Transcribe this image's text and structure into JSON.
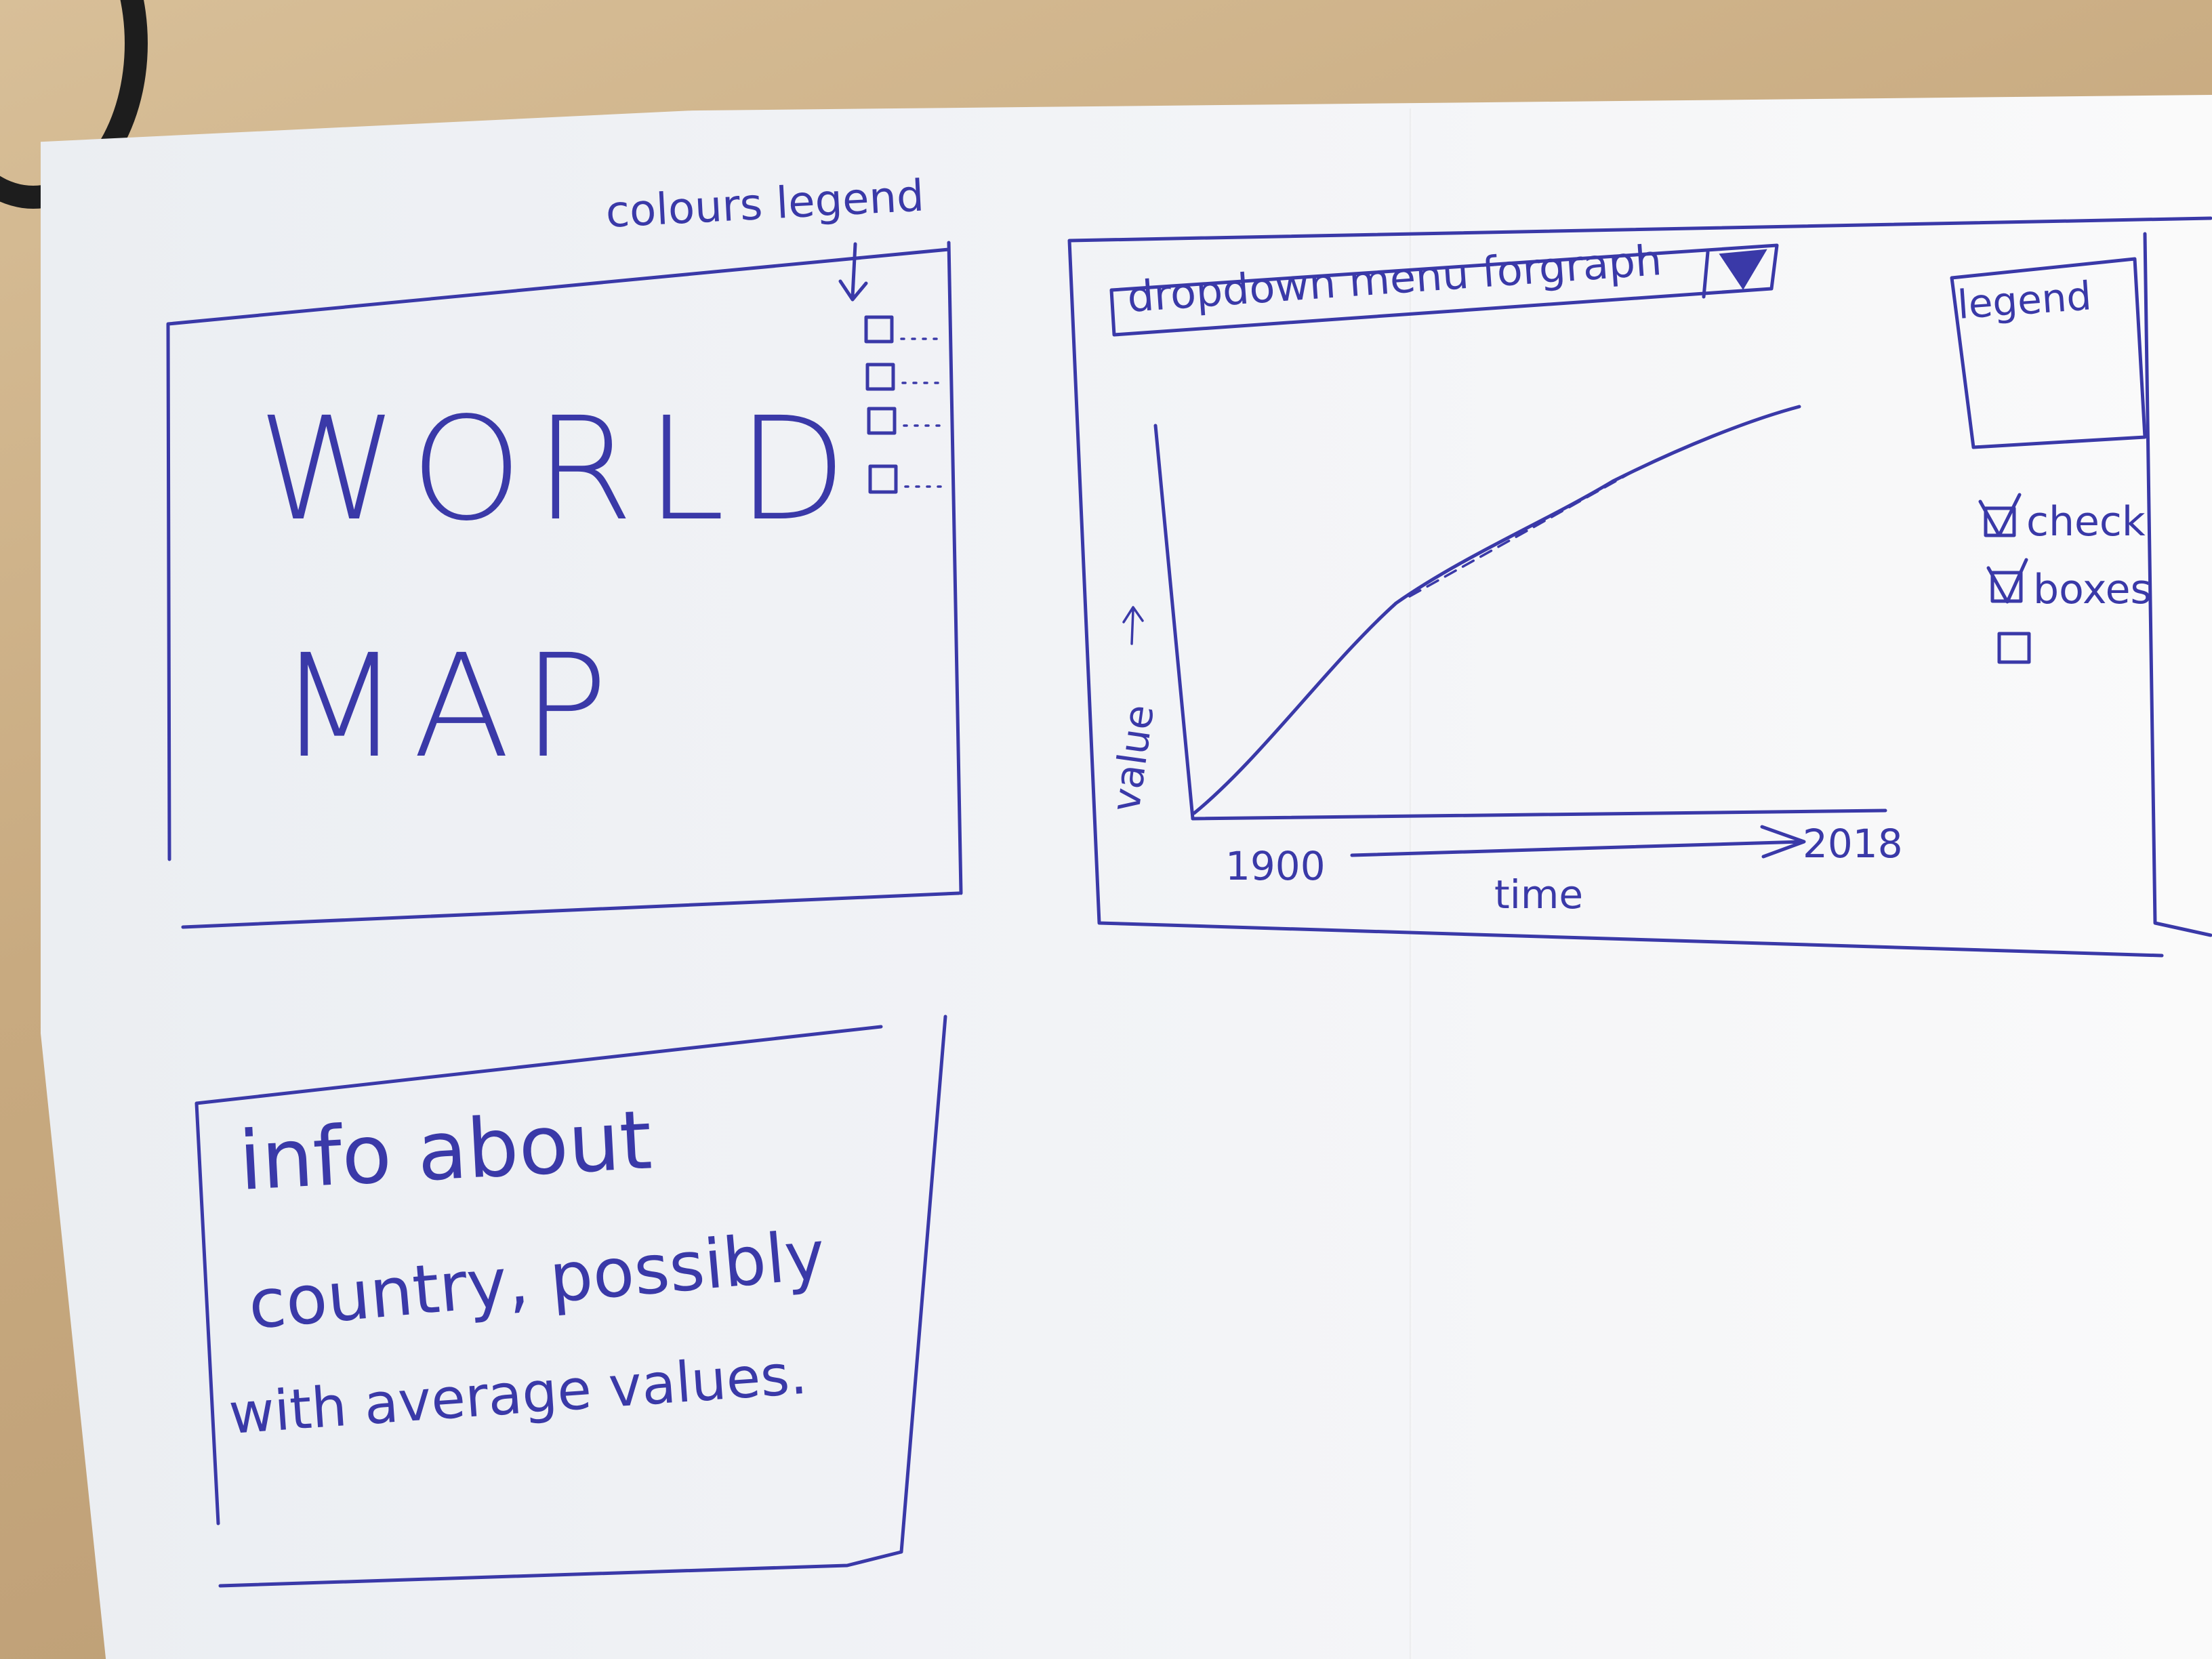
{
  "map_panel": {
    "title_line1": "WORLD",
    "title_line2": "MAP",
    "legend_label": "colours legend"
  },
  "graph_panel": {
    "dropdown_label": "dropdown menu forgraph",
    "legend_label": "legend",
    "checkboxes": [
      {
        "label": "check",
        "checked": true
      },
      {
        "label": "boxes",
        "checked": true
      },
      {
        "label": "",
        "checked": false
      }
    ],
    "y_axis_label": "value",
    "x_axis_label": "time",
    "x_start_label": "1900",
    "x_end_label": "2018"
  },
  "info_panel": {
    "line1": "info about",
    "line2": "country, possibly",
    "line3": "with average values."
  }
}
